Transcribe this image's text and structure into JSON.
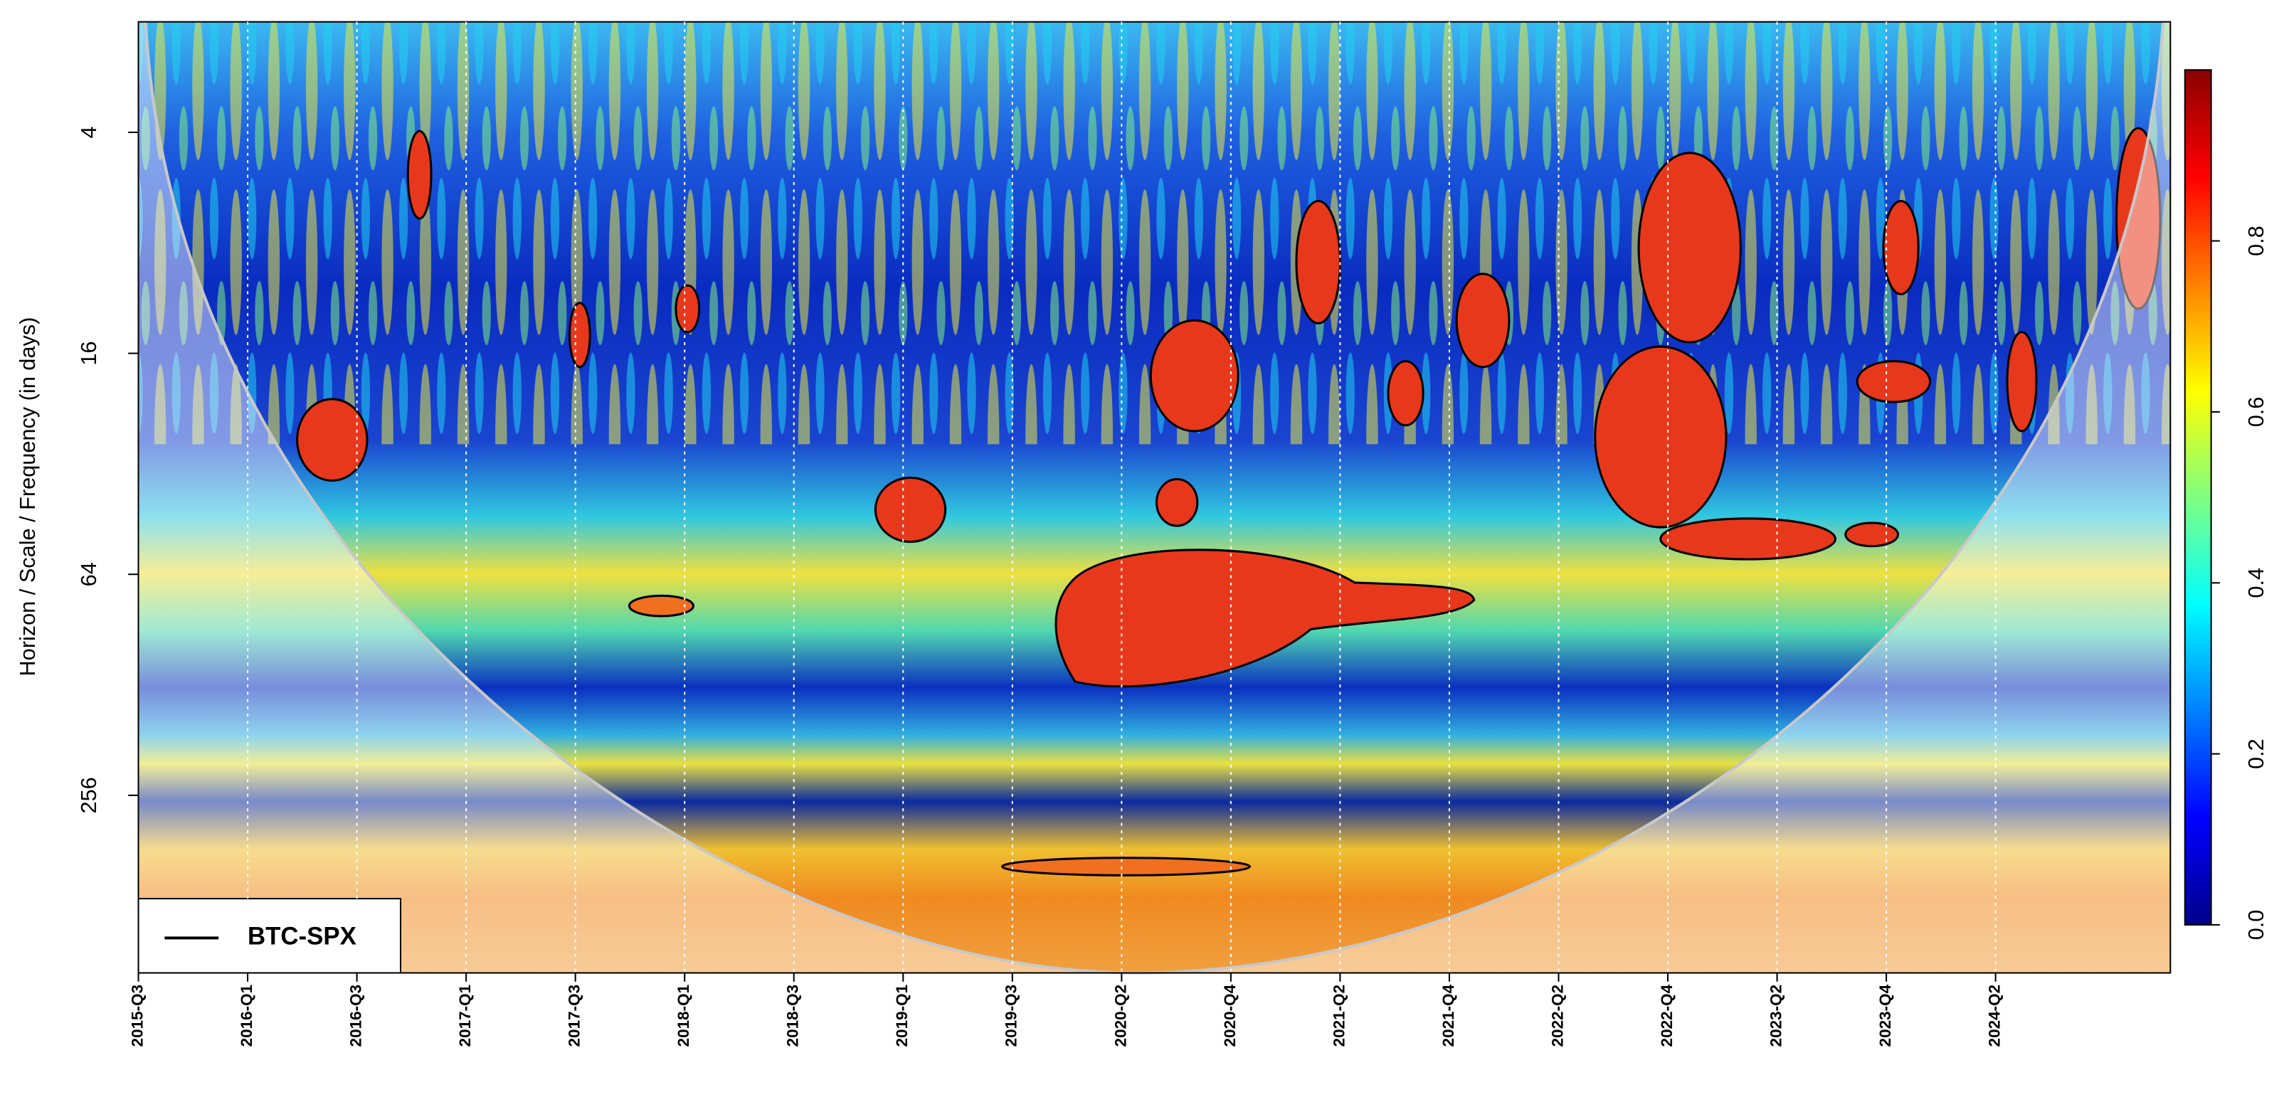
{
  "chart_data": {
    "type": "wavelet-coherence",
    "ylabel": "Horizon / Scale / Frequency (in days)",
    "yscale": "log2",
    "y_inverted": true,
    "ylim": [
      2,
      780
    ],
    "yticks": [
      4,
      16,
      64,
      256
    ],
    "xtick_labels": [
      "2015-Q3",
      "2016-Q1",
      "2016-Q3",
      "2017-Q1",
      "2017-Q3",
      "2018-Q1",
      "2018-Q3",
      "2019-Q1",
      "2019-Q3",
      "2020-Q2",
      "2020-Q4",
      "2021-Q2",
      "2021-Q4",
      "2022-Q2",
      "2022-Q4",
      "2023-Q2",
      "2023-Q4",
      "2024-Q2"
    ],
    "x_grid": true,
    "colorbar": {
      "zlim": [
        0,
        1
      ],
      "zticks": [
        {
          "value": 0,
          "label": "0.0"
        },
        0.2,
        0.4,
        0.6,
        0.8
      ],
      "colors": [
        "#00008b",
        "#0000ff",
        "#0080ff",
        "#00ffff",
        "#80ff80",
        "#ffff00",
        "#ff8000",
        "#ff0000",
        "#8b0000"
      ]
    },
    "series": [
      {
        "name": "BTC-SPX",
        "color": "#000000"
      }
    ],
    "legend": "bottom-left"
  }
}
